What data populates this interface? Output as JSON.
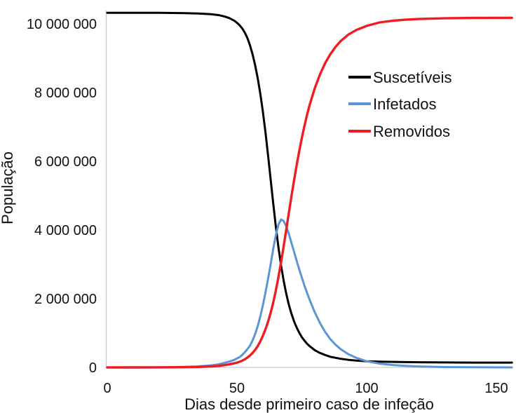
{
  "chart_data": {
    "type": "line",
    "title": "",
    "xlabel": "Dias desde primeiro caso de infeção",
    "ylabel": "População",
    "xlim": [
      0,
      156
    ],
    "ylim": [
      0,
      10500000
    ],
    "grid": false,
    "legend_position": "inside-upper-right",
    "x_ticks": [
      0,
      50,
      100,
      150
    ],
    "x_tick_labels": [
      "0",
      "50",
      "100",
      "150"
    ],
    "y_ticks": [
      0,
      2000000,
      4000000,
      6000000,
      8000000,
      10000000
    ],
    "y_tick_labels": [
      "0",
      "2 000 000",
      "4 000 000",
      "6 000 000",
      "8 000 000",
      "10 000 000"
    ],
    "series": [
      {
        "name": "Suscetíveis",
        "color": "#000000",
        "points": [
          [
            0,
            10300000
          ],
          [
            5,
            10300000
          ],
          [
            10,
            10300000
          ],
          [
            15,
            10300000
          ],
          [
            20,
            10299000
          ],
          [
            25,
            10296000
          ],
          [
            30,
            10291000
          ],
          [
            35,
            10281000
          ],
          [
            40,
            10260000
          ],
          [
            43,
            10232000
          ],
          [
            45,
            10198000
          ],
          [
            47,
            10148000
          ],
          [
            49,
            10070000
          ],
          [
            50,
            10010000
          ],
          [
            51,
            9940000
          ],
          [
            52,
            9850000
          ],
          [
            53,
            9730000
          ],
          [
            54,
            9570000
          ],
          [
            55,
            9360000
          ],
          [
            56,
            9100000
          ],
          [
            57,
            8780000
          ],
          [
            58,
            8400000
          ],
          [
            59,
            7950000
          ],
          [
            60,
            7420000
          ],
          [
            61,
            6820000
          ],
          [
            62,
            6150000
          ],
          [
            63,
            5450000
          ],
          [
            64,
            4750000
          ],
          [
            65,
            4080000
          ],
          [
            66,
            3480000
          ],
          [
            67,
            2960000
          ],
          [
            68,
            2520000
          ],
          [
            69,
            2140000
          ],
          [
            70,
            1820000
          ],
          [
            71,
            1560000
          ],
          [
            72,
            1340000
          ],
          [
            73,
            1160000
          ],
          [
            74,
            1010000
          ],
          [
            75,
            880000
          ],
          [
            76,
            780000
          ],
          [
            77,
            690000
          ],
          [
            78,
            620000
          ],
          [
            80,
            500000
          ],
          [
            82,
            420000
          ],
          [
            84,
            360000
          ],
          [
            86,
            310000
          ],
          [
            88,
            280000
          ],
          [
            90,
            250000
          ],
          [
            93,
            220000
          ],
          [
            96,
            200000
          ],
          [
            100,
            180000
          ],
          [
            105,
            170000
          ],
          [
            110,
            160000
          ],
          [
            115,
            155000
          ],
          [
            120,
            150000
          ],
          [
            130,
            145000
          ],
          [
            140,
            140000
          ],
          [
            150,
            140000
          ],
          [
            156,
            140000
          ]
        ]
      },
      {
        "name": "Infetados",
        "color": "#5b95d5",
        "points": [
          [
            0,
            1000
          ],
          [
            10,
            2000
          ],
          [
            20,
            5000
          ],
          [
            25,
            9000
          ],
          [
            30,
            16000
          ],
          [
            35,
            30000
          ],
          [
            40,
            60000
          ],
          [
            43,
            90000
          ],
          [
            45,
            130000
          ],
          [
            47,
            170000
          ],
          [
            49,
            220000
          ],
          [
            50,
            260000
          ],
          [
            51,
            300000
          ],
          [
            52,
            360000
          ],
          [
            53,
            440000
          ],
          [
            54,
            530000
          ],
          [
            55,
            630000
          ],
          [
            56,
            780000
          ],
          [
            57,
            970000
          ],
          [
            58,
            1200000
          ],
          [
            59,
            1480000
          ],
          [
            60,
            1810000
          ],
          [
            61,
            2180000
          ],
          [
            62,
            2580000
          ],
          [
            63,
            3000000
          ],
          [
            64,
            3450000
          ],
          [
            65,
            3850000
          ],
          [
            66,
            4150000
          ],
          [
            67,
            4300000
          ],
          [
            68,
            4250000
          ],
          [
            69,
            4100000
          ],
          [
            70,
            3880000
          ],
          [
            71,
            3620000
          ],
          [
            72,
            3360000
          ],
          [
            73,
            3100000
          ],
          [
            74,
            2850000
          ],
          [
            75,
            2610000
          ],
          [
            76,
            2380000
          ],
          [
            77,
            2170000
          ],
          [
            78,
            1970000
          ],
          [
            80,
            1600000
          ],
          [
            82,
            1290000
          ],
          [
            84,
            1030000
          ],
          [
            86,
            820000
          ],
          [
            88,
            660000
          ],
          [
            90,
            530000
          ],
          [
            93,
            380000
          ],
          [
            96,
            280000
          ],
          [
            100,
            180000
          ],
          [
            105,
            110000
          ],
          [
            110,
            70000
          ],
          [
            115,
            44000
          ],
          [
            120,
            28000
          ],
          [
            130,
            11000
          ],
          [
            140,
            4000
          ],
          [
            150,
            2000
          ],
          [
            156,
            1000
          ]
        ]
      },
      {
        "name": "Removidos",
        "color": "#ee1d23",
        "points": [
          [
            0,
            0
          ],
          [
            10,
            0
          ],
          [
            20,
            2000
          ],
          [
            25,
            4000
          ],
          [
            30,
            8000
          ],
          [
            35,
            15000
          ],
          [
            40,
            30000
          ],
          [
            43,
            45000
          ],
          [
            45,
            65000
          ],
          [
            47,
            90000
          ],
          [
            49,
            120000
          ],
          [
            50,
            140000
          ],
          [
            51,
            165000
          ],
          [
            52,
            195000
          ],
          [
            53,
            235000
          ],
          [
            54,
            285000
          ],
          [
            55,
            345000
          ],
          [
            56,
            420000
          ],
          [
            57,
            510000
          ],
          [
            58,
            620000
          ],
          [
            59,
            755000
          ],
          [
            60,
            920000
          ],
          [
            61,
            1110000
          ],
          [
            62,
            1330000
          ],
          [
            63,
            1590000
          ],
          [
            64,
            1890000
          ],
          [
            65,
            2240000
          ],
          [
            66,
            2630000
          ],
          [
            67,
            3060000
          ],
          [
            68,
            3520000
          ],
          [
            69,
            4000000
          ],
          [
            70,
            4490000
          ],
          [
            71,
            4970000
          ],
          [
            72,
            5430000
          ],
          [
            73,
            5870000
          ],
          [
            74,
            6280000
          ],
          [
            75,
            6660000
          ],
          [
            76,
            7010000
          ],
          [
            77,
            7330000
          ],
          [
            78,
            7620000
          ],
          [
            80,
            8110000
          ],
          [
            82,
            8510000
          ],
          [
            84,
            8840000
          ],
          [
            86,
            9100000
          ],
          [
            88,
            9310000
          ],
          [
            90,
            9480000
          ],
          [
            93,
            9670000
          ],
          [
            96,
            9800000
          ],
          [
            100,
            9920000
          ],
          [
            105,
            10020000
          ],
          [
            110,
            10070000
          ],
          [
            115,
            10100000
          ],
          [
            120,
            10120000
          ],
          [
            130,
            10140000
          ],
          [
            140,
            10150000
          ],
          [
            150,
            10155000
          ],
          [
            156,
            10155000
          ]
        ]
      }
    ]
  }
}
